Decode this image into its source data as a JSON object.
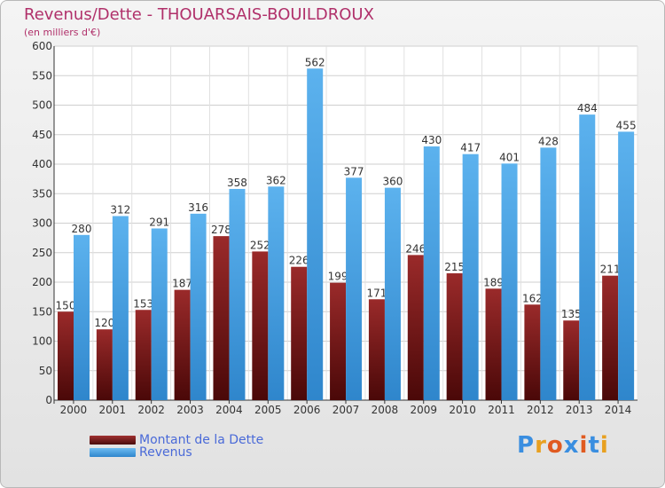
{
  "chart_data": {
    "type": "bar",
    "title": "Revenus/Dette - THOUARSAIS-BOUILDROUX",
    "subtitle": "(en milliers d'€)",
    "categories": [
      "2000",
      "2001",
      "2002",
      "2003",
      "2004",
      "2005",
      "2006",
      "2007",
      "2008",
      "2009",
      "2010",
      "2011",
      "2012",
      "2013",
      "2014"
    ],
    "series": [
      {
        "name": "Montant de la Dette",
        "color": "#7a1e1e",
        "values": [
          150,
          120,
          153,
          187,
          278,
          252,
          226,
          199,
          171,
          246,
          215,
          189,
          162,
          135,
          211
        ]
      },
      {
        "name": "Revenus",
        "color": "#4ea6e6",
        "values": [
          280,
          312,
          291,
          316,
          358,
          362,
          562,
          377,
          360,
          430,
          417,
          401,
          428,
          484,
          455
        ]
      }
    ],
    "ylim": [
      0,
      600
    ],
    "yticks": [
      0,
      50,
      100,
      150,
      200,
      250,
      300,
      350,
      400,
      450,
      500,
      550,
      600
    ],
    "grid": true,
    "legend_position": "bottom-left"
  },
  "logo": {
    "text": "Proxiti",
    "colors": [
      "#3a8ee0",
      "#e8a020",
      "#e05a20",
      "#3a8ee0",
      "#e05a20",
      "#3a8ee0",
      "#e8a020"
    ]
  }
}
